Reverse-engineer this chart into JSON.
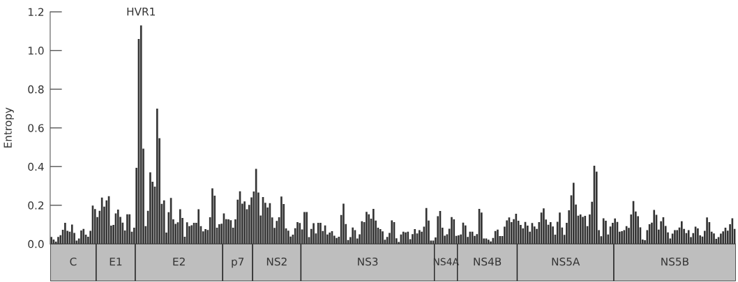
{
  "chart_data": {
    "type": "bar",
    "ylabel": "Entropy",
    "categories": [
      null,
      null,
      null,
      null,
      null,
      null,
      null,
      null,
      null,
      null,
      null,
      null,
      null,
      null,
      null,
      null,
      null,
      null,
      null,
      null,
      null,
      null,
      null,
      null,
      null,
      null,
      null,
      null,
      null,
      null,
      null,
      null,
      null,
      null,
      null,
      null,
      null,
      null,
      null,
      null,
      null,
      null,
      null,
      null,
      null,
      null,
      null,
      null,
      null,
      null,
      null,
      null,
      null,
      null,
      null,
      null,
      null,
      null,
      null,
      null,
      null,
      null,
      null,
      null,
      null,
      null,
      null,
      null,
      null,
      null,
      null,
      null,
      null,
      null,
      null,
      null,
      null,
      null,
      null,
      null,
      null,
      null,
      null,
      null,
      null,
      null,
      null,
      null,
      null,
      null,
      null,
      null,
      null,
      null,
      null,
      null,
      null,
      null,
      null,
      null,
      null,
      null,
      null,
      null,
      null,
      null,
      null,
      null,
      null,
      null,
      null,
      null,
      null,
      null,
      null,
      null,
      null,
      null,
      null,
      null,
      null,
      null,
      null,
      null,
      null,
      null,
      null,
      null,
      null,
      null,
      null,
      null,
      null,
      null,
      null,
      null,
      null,
      null,
      null,
      null,
      null,
      null,
      null,
      null,
      null,
      null,
      null,
      null,
      null,
      null,
      null,
      null,
      null,
      null,
      null,
      null,
      null,
      null,
      null,
      null,
      null,
      null,
      null,
      null,
      null,
      null,
      null,
      null,
      null,
      null,
      null,
      null,
      null,
      null,
      null,
      null,
      null,
      null,
      null,
      null,
      null,
      null,
      null,
      null,
      null,
      null,
      null,
      null,
      null,
      null,
      null,
      null,
      null,
      null,
      null,
      null,
      null,
      null,
      null,
      null,
      null,
      null,
      null,
      null,
      null,
      null,
      null,
      null,
      null,
      null,
      null,
      null,
      null,
      null,
      null,
      null,
      null,
      null,
      null,
      null,
      null,
      null,
      null,
      null,
      null,
      null,
      null,
      null,
      null,
      null,
      null,
      null,
      null,
      null,
      null,
      null,
      null,
      null,
      null,
      null,
      null,
      null,
      null,
      null,
      null,
      null,
      null,
      null,
      null,
      null,
      null,
      null,
      null,
      null,
      null,
      null,
      null,
      null,
      null,
      null,
      null,
      null,
      null,
      null,
      null,
      null,
      null,
      null,
      null,
      null,
      null,
      null,
      null,
      null,
      null,
      null,
      null,
      null,
      null,
      null,
      null,
      null,
      null,
      null,
      null,
      null,
      null,
      null,
      null,
      null,
      null,
      null,
      null,
      null,
      null,
      null,
      null,
      null
    ],
    "values": [
      0.036,
      0.023,
      0.012,
      0.036,
      0.045,
      0.073,
      0.109,
      0.068,
      0.063,
      0.1,
      0.057,
      0.017,
      0.028,
      0.07,
      0.078,
      0.048,
      0.037,
      0.068,
      0.198,
      0.18,
      0.139,
      0.171,
      0.24,
      0.193,
      0.225,
      0.247,
      0.095,
      0.098,
      0.158,
      0.178,
      0.14,
      0.11,
      0.07,
      0.153,
      0.153,
      0.063,
      0.084,
      0.394,
      1.06,
      1.13,
      0.493,
      0.092,
      0.171,
      0.37,
      0.322,
      0.296,
      0.7,
      0.547,
      0.207,
      0.225,
      0.059,
      0.164,
      0.238,
      0.127,
      0.104,
      0.112,
      0.179,
      0.134,
      0.037,
      0.112,
      0.092,
      0.097,
      0.109,
      0.109,
      0.179,
      0.092,
      0.065,
      0.077,
      0.072,
      0.138,
      0.287,
      0.25,
      0.084,
      0.102,
      0.105,
      0.158,
      0.128,
      0.127,
      0.123,
      0.084,
      0.127,
      0.229,
      0.272,
      0.208,
      0.22,
      0.179,
      0.202,
      0.241,
      0.271,
      0.388,
      0.266,
      0.147,
      0.242,
      0.213,
      0.188,
      0.211,
      0.137,
      0.083,
      0.119,
      0.138,
      0.245,
      0.206,
      0.08,
      0.069,
      0.038,
      0.048,
      0.081,
      0.113,
      0.108,
      0.075,
      0.165,
      0.165,
      0.035,
      0.078,
      0.107,
      0.054,
      0.109,
      0.109,
      0.067,
      0.096,
      0.049,
      0.059,
      0.066,
      0.043,
      0.031,
      0.037,
      0.15,
      0.208,
      0.103,
      0.02,
      0.035,
      0.085,
      0.071,
      0.028,
      0.05,
      0.117,
      0.113,
      0.166,
      0.153,
      0.131,
      0.181,
      0.121,
      0.084,
      0.077,
      0.065,
      0.022,
      0.036,
      0.057,
      0.122,
      0.113,
      0.029,
      0.01,
      0.049,
      0.063,
      0.06,
      0.063,
      0.025,
      0.051,
      0.077,
      0.054,
      0.071,
      0.063,
      0.089,
      0.186,
      0.121,
      0.017,
      0.017,
      0.034,
      0.143,
      0.17,
      0.084,
      0.043,
      0.05,
      0.079,
      0.139,
      0.127,
      0.042,
      0.044,
      0.049,
      0.11,
      0.096,
      0.036,
      0.063,
      0.063,
      0.042,
      0.051,
      0.181,
      0.162,
      0.028,
      0.028,
      0.022,
      0.013,
      0.031,
      0.067,
      0.074,
      0.041,
      0.041,
      0.089,
      0.122,
      0.137,
      0.113,
      0.128,
      0.156,
      0.12,
      0.098,
      0.08,
      0.114,
      0.095,
      0.063,
      0.108,
      0.09,
      0.078,
      0.113,
      0.162,
      0.184,
      0.126,
      0.099,
      0.113,
      0.09,
      0.048,
      0.115,
      0.162,
      0.085,
      0.047,
      0.109,
      0.174,
      0.251,
      0.316,
      0.204,
      0.146,
      0.152,
      0.14,
      0.145,
      0.092,
      0.152,
      0.218,
      0.404,
      0.374,
      0.071,
      0.04,
      0.133,
      0.12,
      0.049,
      0.09,
      0.109,
      0.132,
      0.114,
      0.063,
      0.066,
      0.071,
      0.092,
      0.083,
      0.152,
      0.222,
      0.168,
      0.143,
      0.086,
      0.023,
      0.019,
      0.071,
      0.102,
      0.11,
      0.176,
      0.151,
      0.074,
      0.117,
      0.138,
      0.093,
      0.06,
      0.028,
      0.053,
      0.071,
      0.071,
      0.085,
      0.117,
      0.078,
      0.056,
      0.071,
      0.035,
      0.056,
      0.089,
      0.08,
      0.044,
      0.038,
      0.068,
      0.137,
      0.113,
      0.063,
      0.054,
      0.026,
      0.035,
      0.053,
      0.065,
      0.084,
      0.069,
      0.102,
      0.133,
      0.078
    ],
    "color": "#333333",
    "ylim": [
      0,
      1.2
    ],
    "yticks": [
      {
        "value": 0,
        "label": "0.0"
      },
      {
        "value": 0.2,
        "label": "0.2"
      },
      {
        "value": 0.4,
        "label": "0.4"
      },
      {
        "value": 0.6,
        "label": "0.6"
      },
      {
        "value": 0.8,
        "label": "0.8"
      },
      {
        "value": 1.0,
        "label": "1.0"
      },
      {
        "value": 1.2,
        "label": "1.2"
      }
    ],
    "tick_labels": "y",
    "annotations": [
      {
        "text": "HVR1",
        "y": 1.13
      },
      "C",
      "E1",
      "E2",
      "p7",
      "NS2",
      "NS3",
      "NS4A",
      "NS4B",
      "NS5A",
      "NS5B"
    ]
  }
}
